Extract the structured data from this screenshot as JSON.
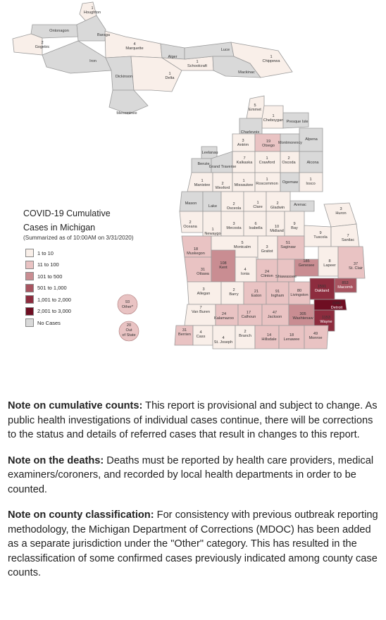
{
  "legend": {
    "title_line1": "COVID-19 Cumulative",
    "title_line2": "Cases in Michigan",
    "subtitle": "(Summarized as of 10:00AM on 3/31/2020)",
    "items": [
      {
        "label": "1 to 10",
        "color": "#f9efe9"
      },
      {
        "label": "11 to 100",
        "color": "#e9c3c3"
      },
      {
        "label": "101 to 500",
        "color": "#c98d92"
      },
      {
        "label": "501 to 1,000",
        "color": "#a85460"
      },
      {
        "label": "1,001 to 2,000",
        "color": "#8d2c3e"
      },
      {
        "label": "2,001 to 3,000",
        "color": "#6e0e22"
      },
      {
        "label": "No Cases",
        "color": "#d9d9d9"
      }
    ]
  },
  "map": {
    "counties": [
      {
        "name": "Houghton",
        "cases": "1",
        "fill": "#f9efe9"
      },
      {
        "name": "Ontonagon",
        "cases": "",
        "fill": "#d9d9d9"
      },
      {
        "name": "Gogebic",
        "cases": "2",
        "fill": "#f9efe9"
      },
      {
        "name": "Baraga",
        "cases": "",
        "fill": "#d9d9d9"
      },
      {
        "name": "Marquette",
        "cases": "4",
        "fill": "#f9efe9"
      },
      {
        "name": "Iron",
        "cases": "",
        "fill": "#d9d9d9"
      },
      {
        "name": "Dickinson",
        "cases": "",
        "fill": "#d9d9d9"
      },
      {
        "name": "Menominee",
        "cases": "",
        "fill": "#d9d9d9"
      },
      {
        "name": "Alger",
        "cases": "",
        "fill": "#d9d9d9"
      },
      {
        "name": "Delta",
        "cases": "1",
        "fill": "#f9efe9"
      },
      {
        "name": "Schoolcraft",
        "cases": "1",
        "fill": "#f9efe9"
      },
      {
        "name": "Luce",
        "cases": "",
        "fill": "#d9d9d9"
      },
      {
        "name": "Mackinac",
        "cases": "",
        "fill": "#d9d9d9"
      },
      {
        "name": "Chippewa",
        "cases": "1",
        "fill": "#f9efe9"
      },
      {
        "name": "Emmet",
        "cases": "5",
        "fill": "#f9efe9"
      },
      {
        "name": "Cheboygan",
        "cases": "1",
        "fill": "#f9efe9"
      },
      {
        "name": "Presque Isle",
        "cases": "",
        "fill": "#d9d9d9"
      },
      {
        "name": "Charlevoix",
        "cases": "",
        "fill": "#d9d9d9"
      },
      {
        "name": "Antrim",
        "cases": "3",
        "fill": "#f9efe9"
      },
      {
        "name": "Otsego",
        "cases": "19",
        "fill": "#e9c3c3"
      },
      {
        "name": "Montmorency",
        "cases": "",
        "fill": "#d9d9d9"
      },
      {
        "name": "Alpena",
        "cases": "",
        "fill": "#d9d9d9"
      },
      {
        "name": "Leelanau",
        "cases": "",
        "fill": "#d9d9d9"
      },
      {
        "name": "Benzie",
        "cases": "",
        "fill": "#d9d9d9"
      },
      {
        "name": "Grand Traverse",
        "cases": "",
        "fill": "#d9d9d9"
      },
      {
        "name": "Kalkaska",
        "cases": "7",
        "fill": "#f9efe9"
      },
      {
        "name": "Crawford",
        "cases": "1",
        "fill": "#f9efe9"
      },
      {
        "name": "Oscoda",
        "cases": "2",
        "fill": "#f9efe9"
      },
      {
        "name": "Alcona",
        "cases": "",
        "fill": "#d9d9d9"
      },
      {
        "name": "Manistee",
        "cases": "1",
        "fill": "#f9efe9"
      },
      {
        "name": "Wexford",
        "cases": "2",
        "fill": "#f9efe9"
      },
      {
        "name": "Missaukee",
        "cases": "1",
        "fill": "#f9efe9"
      },
      {
        "name": "Roscommon",
        "cases": "1",
        "fill": "#f9efe9"
      },
      {
        "name": "Ogemaw",
        "cases": "",
        "fill": "#d9d9d9"
      },
      {
        "name": "Iosco",
        "cases": "1",
        "fill": "#f9efe9"
      },
      {
        "name": "Mason",
        "cases": "",
        "fill": "#d9d9d9"
      },
      {
        "name": "Lake",
        "cases": "",
        "fill": "#d9d9d9"
      },
      {
        "name": "Osceola",
        "cases": "2",
        "fill": "#f9efe9"
      },
      {
        "name": "Clare",
        "cases": "1",
        "fill": "#f9efe9"
      },
      {
        "name": "Gladwin",
        "cases": "2",
        "fill": "#f9efe9"
      },
      {
        "name": "Arenac",
        "cases": "",
        "fill": "#d9d9d9"
      },
      {
        "name": "Huron",
        "cases": "3",
        "fill": "#f9efe9"
      },
      {
        "name": "Oceana",
        "cases": "2",
        "fill": "#f9efe9"
      },
      {
        "name": "Newaygo",
        "cases": "1",
        "fill": "#f9efe9"
      },
      {
        "name": "Mecosta",
        "cases": "3",
        "fill": "#f9efe9"
      },
      {
        "name": "Isabella",
        "cases": "6",
        "fill": "#f9efe9"
      },
      {
        "name": "Midland",
        "cases": "10",
        "fill": "#f9efe9"
      },
      {
        "name": "Bay",
        "cases": "9",
        "fill": "#f9efe9"
      },
      {
        "name": "Tuscola",
        "cases": "9",
        "fill": "#f9efe9"
      },
      {
        "name": "Sanilac",
        "cases": "7",
        "fill": "#f9efe9"
      },
      {
        "name": "Muskegon",
        "cases": "18",
        "fill": "#e9c3c3"
      },
      {
        "name": "Montcalm",
        "cases": "5",
        "fill": "#f9efe9"
      },
      {
        "name": "Gratiot",
        "cases": "3",
        "fill": "#f9efe9"
      },
      {
        "name": "Saginaw",
        "cases": "51",
        "fill": "#e9c3c3"
      },
      {
        "name": "Genesee",
        "cases": "185",
        "fill": "#c98d92"
      },
      {
        "name": "Lapeer",
        "cases": "8",
        "fill": "#f9efe9"
      },
      {
        "name": "St. Clair",
        "cases": "37",
        "fill": "#e9c3c3"
      },
      {
        "name": "Ottawa",
        "cases": "31",
        "fill": "#e9c3c3"
      },
      {
        "name": "Kent",
        "cases": "108",
        "fill": "#c98d92"
      },
      {
        "name": "Ionia",
        "cases": "4",
        "fill": "#f9efe9"
      },
      {
        "name": "Clinton",
        "cases": "24",
        "fill": "#e9c3c3"
      },
      {
        "name": "Shiawassee",
        "cases": "",
        "fill": "#e9c3c3"
      },
      {
        "name": "Oakland",
        "cases": "1591",
        "fill": "#8d2c3e"
      },
      {
        "name": "Macomb",
        "cases": "853",
        "fill": "#a85460"
      },
      {
        "name": "Allegan",
        "cases": "3",
        "fill": "#f9efe9"
      },
      {
        "name": "Barry",
        "cases": "2",
        "fill": "#f9efe9"
      },
      {
        "name": "Eaton",
        "cases": "21",
        "fill": "#e9c3c3"
      },
      {
        "name": "Ingham",
        "cases": "91",
        "fill": "#e9c3c3"
      },
      {
        "name": "Livingston",
        "cases": "80",
        "fill": "#e9c3c3"
      },
      {
        "name": "Van Buren",
        "cases": "7",
        "fill": "#f9efe9"
      },
      {
        "name": "Kalamazoo",
        "cases": "24",
        "fill": "#e9c3c3"
      },
      {
        "name": "Calhoun",
        "cases": "17",
        "fill": "#e9c3c3"
      },
      {
        "name": "Jackson",
        "cases": "47",
        "fill": "#e9c3c3"
      },
      {
        "name": "Washtenaw",
        "cases": "305",
        "fill": "#c98d92"
      },
      {
        "name": "Wayne",
        "cases": "1153",
        "fill": "#8d2c3e"
      },
      {
        "name": "Detroit",
        "cases": "2080",
        "fill": "#6e0e22"
      },
      {
        "name": "Berrien",
        "cases": "31",
        "fill": "#e9c3c3"
      },
      {
        "name": "Cass",
        "cases": "4",
        "fill": "#f9efe9"
      },
      {
        "name": "St. Joseph",
        "cases": "4",
        "fill": "#f9efe9"
      },
      {
        "name": "Branch",
        "cases": "2",
        "fill": "#f9efe9"
      },
      {
        "name": "Hillsdale",
        "cases": "14",
        "fill": "#e9c3c3"
      },
      {
        "name": "Lenawee",
        "cases": "18",
        "fill": "#e9c3c3"
      },
      {
        "name": "Monroe",
        "cases": "49",
        "fill": "#e9c3c3"
      }
    ],
    "other": {
      "cases": "93",
      "label": "Other*",
      "fill": "#e9c3c3"
    },
    "out_of_state": {
      "cases": "20",
      "label_line1": "Out",
      "label_line2": "of State",
      "fill": "#e9c3c3"
    }
  },
  "notes": [
    {
      "heading": "Note on cumulative counts:",
      "text": " This report is provisional and subject to change.  As public health investigations of individual cases continue, there will be corrections to the status and details of referred cases that result in changes to this report."
    },
    {
      "heading": "Note on the deaths:",
      "text": " Deaths must be reported by health care providers, medical examiners/coroners, and recorded by local health departments in order to be counted."
    },
    {
      "heading": "Note on county classification:",
      "text": " For consistency with previous outbreak reporting methodology, the Michigan Department of Corrections (MDOC) has been added as a separate jurisdiction under the \"Other\" category. This has resulted in the reclassification of some confirmed cases previously indicated among county case counts."
    }
  ]
}
